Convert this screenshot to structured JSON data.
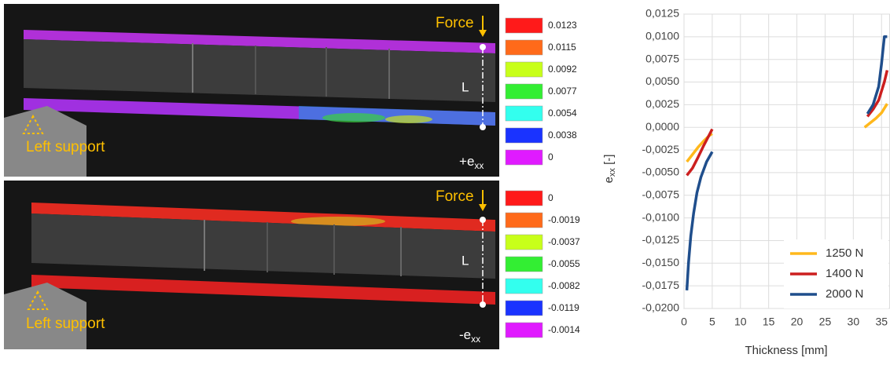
{
  "panels": [
    {
      "force": "Force",
      "length": "L",
      "support": "Left support",
      "strain_sign": "+",
      "strain_symbol": "e",
      "strain_sub": "xx",
      "colorbar": [
        "0.0123",
        "0.0115",
        "0.0092",
        "0.0077",
        "0.0054",
        "0.0038",
        "0"
      ]
    },
    {
      "force": "Force",
      "length": "L",
      "support": "Left support",
      "strain_sign": "-",
      "strain_symbol": "e",
      "strain_sub": "xx",
      "colorbar": [
        "0",
        "-0.0019",
        "-0.0037",
        "-0.0055",
        "-0.0082",
        "-0.0119",
        "-0.0014"
      ]
    }
  ],
  "colorbar_colors": [
    "#ff1a1a",
    "#ff6a1a",
    "#c8ff1a",
    "#33ee33",
    "#33ffee",
    "#1a33ff",
    "#e01aff"
  ],
  "chart_data": {
    "type": "line",
    "x_label": "Thickness [mm]",
    "y_label": {
      "symbol": "e",
      "sub": "xx",
      "unit": " [-]"
    },
    "xlim": [
      0,
      36.5
    ],
    "ylim": [
      -0.02,
      0.0125
    ],
    "xticks": [
      0,
      5,
      10,
      15,
      20,
      25,
      30,
      35
    ],
    "yticks": [
      {
        "value": 0.0125,
        "label": "0,0125"
      },
      {
        "value": 0.01,
        "label": "0,0100"
      },
      {
        "value": 0.0075,
        "label": "0,0075"
      },
      {
        "value": 0.005,
        "label": "0,0050"
      },
      {
        "value": 0.0025,
        "label": "0,0025"
      },
      {
        "value": 0,
        "label": "0,0000"
      },
      {
        "value": -0.0025,
        "label": "-0,0025"
      },
      {
        "value": -0.005,
        "label": "-0,0050"
      },
      {
        "value": -0.0075,
        "label": "-0,0075"
      },
      {
        "value": -0.01,
        "label": "-0,0100"
      },
      {
        "value": -0.0125,
        "label": "-0,0125"
      },
      {
        "value": -0.015,
        "label": "-0,0150"
      },
      {
        "value": -0.0175,
        "label": "-0,0175"
      },
      {
        "value": -0.02,
        "label": "-0,0200"
      }
    ],
    "grid": true,
    "legend": "lower right",
    "series": [
      {
        "name": "1250 N",
        "color": "#ffb81c",
        "x": [
          0.5,
          1.5,
          2.5,
          3.5,
          4.5,
          5,
          null,
          32,
          33,
          34,
          35,
          36
        ],
        "values": [
          -0.0038,
          -0.003,
          -0.0022,
          -0.0015,
          -0.0009,
          -0.0007,
          null,
          0.0,
          0.0005,
          0.001,
          0.0016,
          0.0026
        ]
      },
      {
        "name": "1400 N",
        "color": "#cc1f1f",
        "x": [
          0.5,
          1.5,
          2.5,
          3.5,
          4.5,
          5,
          null,
          32.5,
          33.5,
          34.5,
          35.5,
          36
        ],
        "values": [
          -0.0053,
          -0.0045,
          -0.0033,
          -0.002,
          -0.0008,
          -0.0002,
          null,
          0.0012,
          0.002,
          0.003,
          0.005,
          0.0063
        ]
      },
      {
        "name": "2000 N",
        "color": "#1f4e8c",
        "x": [
          0.5,
          0.8,
          1.2,
          1.7,
          2.3,
          3,
          4,
          5,
          null,
          32.5,
          33.5,
          34.5,
          35,
          35.5,
          36
        ],
        "values": [
          -0.018,
          -0.015,
          -0.012,
          -0.0095,
          -0.0072,
          -0.0055,
          -0.0038,
          -0.0027,
          null,
          0.0015,
          0.0025,
          0.0045,
          0.007,
          0.01,
          0.01
        ]
      }
    ]
  }
}
